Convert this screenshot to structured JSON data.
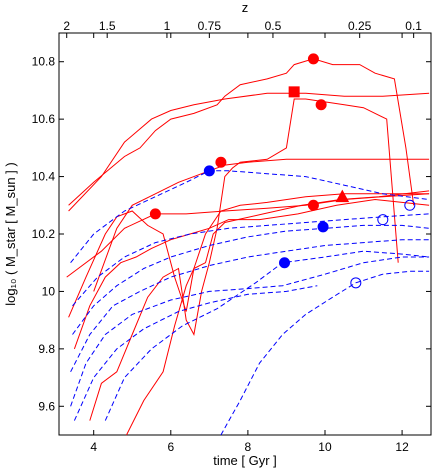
{
  "chart_data": {
    "type": "line",
    "xlabel": "time [ Gyr ]",
    "ylabel": "log₁₀ ( M_star [ M_sun ] )",
    "top_axis_label": "z",
    "xlim": [
      3.1,
      12.75
    ],
    "ylim": [
      9.5,
      10.9
    ],
    "x_ticks": [
      4,
      6,
      8,
      10,
      12
    ],
    "y_ticks": [
      9.6,
      9.8,
      10,
      10.2,
      10.4,
      10.6,
      10.8
    ],
    "y_tick_labels": [
      "9.6",
      "9.8",
      "10",
      "10.2",
      "10.4",
      "10.6",
      "10.8"
    ],
    "top_ticks": [
      {
        "label": "2",
        "t": 3.3
      },
      {
        "label": "1.5",
        "t": 4.35
      },
      {
        "label": "1",
        "t": 5.9
      },
      {
        "label": "0.75",
        "t": 7.0
      },
      {
        "label": "0.5",
        "t": 8.65
      },
      {
        "label": "0.25",
        "t": 10.9
      },
      {
        "label": "0.1",
        "t": 12.3
      }
    ],
    "colors": {
      "red": "#ff0000",
      "blue": "#0000ff"
    },
    "series": [
      {
        "color": "red",
        "dash": false,
        "points": [
          [
            3.35,
            10.3
          ],
          [
            4.0,
            10.38
          ],
          [
            4.8,
            10.47
          ],
          [
            5.2,
            10.5
          ],
          [
            5.6,
            10.56
          ],
          [
            6.0,
            10.6
          ],
          [
            6.6,
            10.62
          ],
          [
            7.2,
            10.65
          ],
          [
            7.4,
            10.68
          ],
          [
            7.8,
            10.72
          ],
          [
            8.5,
            10.74
          ],
          [
            9.0,
            10.76
          ],
          [
            9.2,
            10.79
          ],
          [
            9.7,
            10.81
          ],
          [
            10.2,
            10.79
          ],
          [
            10.9,
            10.79
          ],
          [
            11.3,
            10.76
          ],
          [
            11.8,
            10.74
          ],
          [
            12.1,
            10.5
          ],
          [
            12.3,
            10.3
          ]
        ]
      },
      {
        "color": "red",
        "dash": false,
        "points": [
          [
            3.35,
            10.28
          ],
          [
            4.2,
            10.4
          ],
          [
            4.8,
            10.52
          ],
          [
            5.5,
            10.6
          ],
          [
            6.0,
            10.63
          ],
          [
            6.6,
            10.65
          ],
          [
            7.4,
            10.67
          ],
          [
            8.5,
            10.69
          ],
          [
            9.5,
            10.69
          ],
          [
            10.5,
            10.68
          ],
          [
            11.5,
            10.68
          ],
          [
            12.7,
            10.69
          ]
        ]
      },
      {
        "color": "red",
        "dash": false,
        "points": [
          [
            4.0,
            10.0
          ],
          [
            4.6,
            10.22
          ],
          [
            5.0,
            10.3
          ],
          [
            5.6,
            10.34
          ],
          [
            6.2,
            10.38
          ],
          [
            7.0,
            10.42
          ],
          [
            7.4,
            10.44
          ],
          [
            8.0,
            10.45
          ],
          [
            9.0,
            10.46
          ],
          [
            10.5,
            10.46
          ],
          [
            11.8,
            10.46
          ],
          [
            12.7,
            10.46
          ]
        ]
      },
      {
        "color": "red",
        "dash": false,
        "points": [
          [
            3.3,
            10.05
          ],
          [
            4.2,
            10.14
          ],
          [
            4.8,
            10.22
          ],
          [
            5.6,
            10.27
          ],
          [
            6.4,
            10.27
          ],
          [
            7.4,
            10.28
          ],
          [
            8.5,
            10.29
          ],
          [
            9.5,
            10.3
          ],
          [
            10.5,
            10.32
          ],
          [
            11.5,
            10.33
          ],
          [
            12.7,
            10.34
          ]
        ]
      },
      {
        "color": "red",
        "dash": false,
        "points": [
          [
            3.35,
            9.91
          ],
          [
            3.8,
            10.05
          ],
          [
            4.3,
            10.2
          ],
          [
            4.6,
            10.26
          ],
          [
            5.0,
            10.28
          ],
          [
            5.4,
            10.23
          ],
          [
            5.8,
            10.2
          ],
          [
            6.1,
            10.05
          ],
          [
            6.4,
            9.93
          ],
          [
            6.6,
            10.08
          ],
          [
            6.9,
            10.1
          ],
          [
            7.1,
            10.2
          ],
          [
            7.4,
            10.24
          ],
          [
            8.4,
            10.27
          ],
          [
            9.4,
            10.3
          ],
          [
            10.4,
            10.32
          ],
          [
            11.4,
            10.33
          ],
          [
            12.7,
            10.35
          ]
        ]
      },
      {
        "color": "red",
        "dash": false,
        "points": [
          [
            3.5,
            9.8
          ],
          [
            3.9,
            9.95
          ],
          [
            4.3,
            10.05
          ],
          [
            4.7,
            10.1
          ],
          [
            5.1,
            10.12
          ],
          [
            5.5,
            10.15
          ],
          [
            6.0,
            10.18
          ],
          [
            6.5,
            10.2
          ],
          [
            7.0,
            10.22
          ],
          [
            7.5,
            10.25
          ],
          [
            8.3,
            10.25
          ],
          [
            9.3,
            10.27
          ],
          [
            10.3,
            10.3
          ],
          [
            11.3,
            10.32
          ],
          [
            12.7,
            10.3
          ]
        ]
      },
      {
        "color": "red",
        "dash": false,
        "points": [
          [
            3.9,
            9.55
          ],
          [
            4.2,
            9.68
          ],
          [
            4.6,
            9.72
          ],
          [
            5.0,
            9.85
          ],
          [
            5.4,
            9.98
          ],
          [
            5.8,
            10.05
          ],
          [
            6.2,
            10.08
          ],
          [
            6.4,
            9.9
          ],
          [
            6.6,
            9.85
          ],
          [
            6.8,
            10.0
          ],
          [
            7.0,
            10.1
          ],
          [
            7.2,
            10.22
          ],
          [
            7.4,
            10.4
          ],
          [
            7.6,
            10.43
          ],
          [
            7.8,
            10.45
          ],
          [
            8.5,
            10.46
          ],
          [
            9.0,
            10.5
          ],
          [
            9.2,
            10.67
          ],
          [
            9.5,
            10.67
          ],
          [
            10.0,
            10.66
          ],
          [
            10.5,
            10.65
          ],
          [
            11.0,
            10.64
          ],
          [
            11.6,
            10.6
          ],
          [
            11.9,
            10.1
          ]
        ]
      },
      {
        "color": "red",
        "dash": false,
        "points": [
          [
            4.85,
            9.5
          ],
          [
            5.3,
            9.62
          ],
          [
            5.8,
            9.72
          ],
          [
            6.1,
            9.88
          ],
          [
            6.4,
            10.02
          ],
          [
            6.6,
            10.08
          ],
          [
            6.9,
            10.2
          ],
          [
            7.3,
            10.28
          ],
          [
            7.8,
            10.3
          ],
          [
            8.5,
            10.31
          ],
          [
            9.5,
            10.33
          ],
          [
            10.5,
            10.34
          ],
          [
            11.5,
            10.34
          ],
          [
            12.7,
            10.34
          ]
        ]
      },
      {
        "color": "blue",
        "dash": true,
        "points": [
          [
            3.4,
            10.1
          ],
          [
            4.0,
            10.2
          ],
          [
            4.8,
            10.28
          ],
          [
            5.6,
            10.33
          ],
          [
            6.4,
            10.38
          ],
          [
            7.0,
            10.42
          ],
          [
            7.5,
            10.42
          ],
          [
            8.5,
            10.41
          ],
          [
            9.5,
            10.4
          ],
          [
            10.5,
            10.37
          ],
          [
            11.5,
            10.34
          ],
          [
            12.7,
            10.32
          ]
        ]
      },
      {
        "color": "blue",
        "dash": true,
        "points": [
          [
            3.45,
            9.95
          ],
          [
            4.1,
            10.05
          ],
          [
            4.8,
            10.12
          ],
          [
            5.6,
            10.17
          ],
          [
            6.5,
            10.2
          ],
          [
            7.5,
            10.22
          ],
          [
            8.5,
            10.23
          ],
          [
            9.5,
            10.24
          ],
          [
            10.5,
            10.25
          ],
          [
            11.5,
            10.26
          ],
          [
            12.7,
            10.27
          ]
        ]
      },
      {
        "color": "blue",
        "dash": true,
        "points": [
          [
            3.45,
            9.85
          ],
          [
            4.0,
            9.95
          ],
          [
            4.6,
            10.02
          ],
          [
            5.3,
            10.08
          ],
          [
            6.0,
            10.12
          ],
          [
            7.0,
            10.16
          ],
          [
            8.0,
            10.19
          ],
          [
            9.0,
            10.21
          ],
          [
            10.0,
            10.22
          ],
          [
            11.0,
            10.23
          ],
          [
            12.0,
            10.23
          ],
          [
            12.7,
            10.22
          ]
        ]
      },
      {
        "color": "blue",
        "dash": true,
        "points": [
          [
            3.4,
            9.72
          ],
          [
            3.9,
            9.85
          ],
          [
            4.5,
            9.95
          ],
          [
            5.2,
            10.0
          ],
          [
            6.0,
            10.05
          ],
          [
            7.0,
            10.09
          ],
          [
            8.0,
            10.12
          ],
          [
            9.0,
            10.14
          ],
          [
            10.0,
            10.16
          ],
          [
            11.0,
            10.17
          ],
          [
            12.0,
            10.18
          ],
          [
            12.7,
            10.18
          ]
        ]
      },
      {
        "color": "blue",
        "dash": true,
        "points": [
          [
            3.4,
            9.6
          ],
          [
            3.8,
            9.75
          ],
          [
            4.3,
            9.85
          ],
          [
            5.0,
            9.92
          ],
          [
            6.0,
            9.97
          ],
          [
            7.0,
            10.0
          ],
          [
            8.0,
            10.01
          ],
          [
            8.9,
            10.02
          ],
          [
            10.0,
            10.06
          ],
          [
            11.0,
            10.1
          ],
          [
            12.0,
            10.12
          ],
          [
            12.7,
            10.12
          ]
        ]
      },
      {
        "color": "blue",
        "dash": true,
        "points": [
          [
            4.3,
            9.55
          ],
          [
            4.8,
            9.7
          ],
          [
            5.5,
            9.8
          ],
          [
            6.3,
            9.88
          ],
          [
            7.2,
            9.94
          ],
          [
            8.2,
            10.03
          ],
          [
            8.9,
            10.1
          ],
          [
            10.0,
            10.12
          ],
          [
            11.0,
            10.14
          ],
          [
            12.0,
            10.13
          ],
          [
            12.7,
            10.12
          ]
        ]
      },
      {
        "color": "blue",
        "dash": true,
        "points": [
          [
            7.3,
            9.5
          ],
          [
            7.8,
            9.62
          ],
          [
            8.3,
            9.75
          ],
          [
            8.9,
            9.85
          ],
          [
            9.5,
            9.92
          ],
          [
            10.2,
            9.98
          ],
          [
            10.8,
            10.03
          ],
          [
            11.5,
            10.06
          ],
          [
            12.2,
            10.07
          ],
          [
            12.7,
            10.07
          ]
        ]
      },
      {
        "color": "blue",
        "dash": true,
        "points": [
          [
            3.5,
            9.55
          ],
          [
            4.0,
            9.7
          ],
          [
            4.6,
            9.8
          ],
          [
            5.3,
            9.87
          ],
          [
            6.2,
            9.93
          ],
          [
            7.0,
            9.96
          ],
          [
            8.0,
            9.99
          ],
          [
            9.0,
            10.0
          ],
          [
            9.8,
            10.02
          ]
        ]
      }
    ],
    "markers": [
      {
        "shape": "circle",
        "filled": true,
        "color": "red",
        "x": 9.7,
        "y": 10.81
      },
      {
        "shape": "square",
        "filled": true,
        "color": "red",
        "x": 9.2,
        "y": 10.695
      },
      {
        "shape": "circle",
        "filled": true,
        "color": "red",
        "x": 9.9,
        "y": 10.65
      },
      {
        "shape": "circle",
        "filled": true,
        "color": "red",
        "x": 7.3,
        "y": 10.45
      },
      {
        "shape": "circle",
        "filled": true,
        "color": "red",
        "x": 5.6,
        "y": 10.27
      },
      {
        "shape": "circle",
        "filled": true,
        "color": "red",
        "x": 9.7,
        "y": 10.3
      },
      {
        "shape": "triangle",
        "filled": true,
        "color": "red",
        "x": 10.45,
        "y": 10.33
      },
      {
        "shape": "circle",
        "filled": true,
        "color": "blue",
        "x": 7.0,
        "y": 10.42
      },
      {
        "shape": "circle",
        "filled": true,
        "color": "blue",
        "x": 9.95,
        "y": 10.225
      },
      {
        "shape": "circle",
        "filled": true,
        "color": "blue",
        "x": 8.95,
        "y": 10.1
      },
      {
        "shape": "circle",
        "filled": false,
        "color": "blue",
        "x": 12.2,
        "y": 10.3
      },
      {
        "shape": "circle",
        "filled": false,
        "color": "blue",
        "x": 11.5,
        "y": 10.25
      },
      {
        "shape": "circle",
        "filled": false,
        "color": "blue",
        "x": 10.8,
        "y": 10.03
      }
    ]
  }
}
